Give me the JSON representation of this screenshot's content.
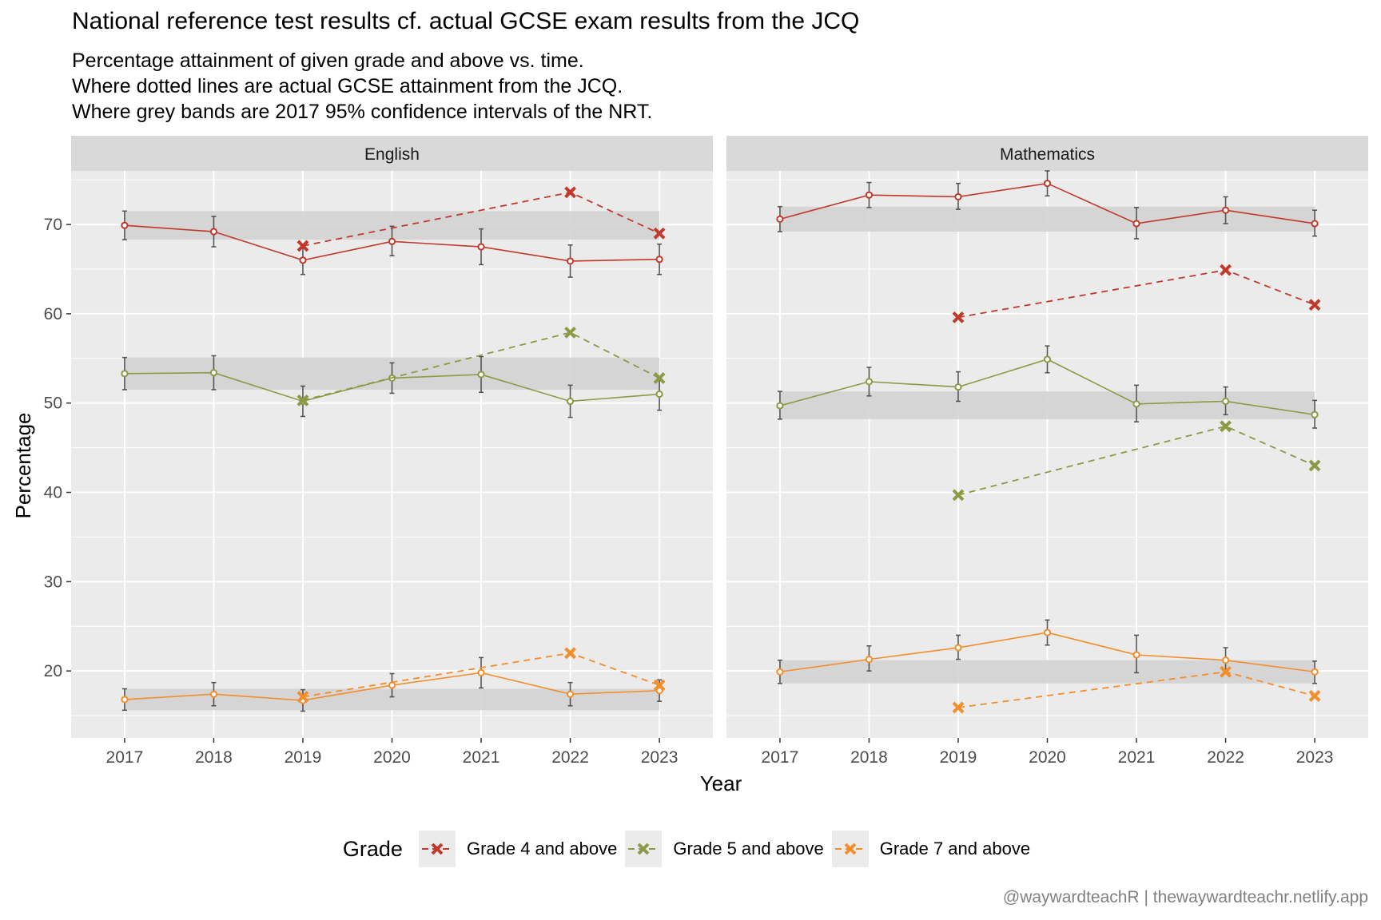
{
  "title": "National reference test results cf. actual GCSE exam results from the JCQ",
  "subtitle_lines": [
    "Percentage attainment of given grade and above vs. time.",
    "Where dotted lines are actual GCSE attainment from the JCQ.",
    "Where grey bands are 2017 95% confidence intervals of the NRT."
  ],
  "caption": "@waywardteachR | thewaywardteachr.netlify.app",
  "colors": {
    "grade4": "#c0392b",
    "grade5": "#8a9a45",
    "grade7": "#f28e2b",
    "panel_bg": "#ebebeb",
    "strip_bg": "#d9d9d9",
    "band": "#d3d3d3"
  },
  "chart_data": {
    "type": "line",
    "xlabel": "Year",
    "ylabel": "Percentage",
    "x": [
      2017,
      2018,
      2019,
      2020,
      2021,
      2022,
      2023
    ],
    "xlim": [
      2016.4,
      2023.6
    ],
    "ylim": [
      12.5,
      76
    ],
    "yticks": [
      20,
      30,
      40,
      50,
      60,
      70
    ],
    "legend": {
      "title": "Grade",
      "position": "bottom",
      "entries": [
        "Grade 4 and above",
        "Grade 5 and above",
        "Grade 7 and above"
      ]
    },
    "panels": [
      {
        "name": "English",
        "nrt": [
          {
            "grade": "Grade 4 and above",
            "values": [
              69.9,
              69.2,
              66.0,
              68.1,
              67.5,
              65.9,
              66.1
            ],
            "lower": [
              68.3,
              67.5,
              64.4,
              66.5,
              65.5,
              64.1,
              64.4
            ],
            "upper": [
              71.5,
              70.9,
              67.6,
              69.8,
              69.5,
              67.7,
              67.8
            ]
          },
          {
            "grade": "Grade 5 and above",
            "values": [
              53.3,
              53.4,
              50.2,
              52.8,
              53.2,
              50.2,
              51.0
            ],
            "lower": [
              51.5,
              51.5,
              48.5,
              51.1,
              51.2,
              48.4,
              49.2
            ],
            "upper": [
              55.1,
              55.3,
              51.9,
              54.5,
              55.2,
              52.0,
              52.8
            ]
          },
          {
            "grade": "Grade 7 and above",
            "values": [
              16.8,
              17.4,
              16.7,
              18.4,
              19.8,
              17.4,
              17.8
            ],
            "lower": [
              15.6,
              16.1,
              15.5,
              17.1,
              18.1,
              16.1,
              16.6
            ],
            "upper": [
              18.0,
              18.7,
              17.9,
              19.7,
              21.5,
              18.7,
              19.0
            ]
          }
        ],
        "jcq": [
          {
            "grade": "Grade 4 and above",
            "x": [
              2019,
              2022,
              2023
            ],
            "values": [
              67.6,
              73.6,
              69.0
            ]
          },
          {
            "grade": "Grade 5 and above",
            "x": [
              2019,
              2022,
              2023
            ],
            "values": [
              50.3,
              57.9,
              52.8
            ]
          },
          {
            "grade": "Grade 7 and above",
            "x": [
              2019,
              2022,
              2023
            ],
            "values": [
              17.1,
              22.0,
              18.4
            ]
          }
        ],
        "bands_2017": [
          {
            "grade": "Grade 4 and above",
            "lower": 68.3,
            "upper": 71.5
          },
          {
            "grade": "Grade 5 and above",
            "lower": 51.5,
            "upper": 55.1
          },
          {
            "grade": "Grade 7 and above",
            "lower": 15.6,
            "upper": 18.0
          }
        ]
      },
      {
        "name": "Mathematics",
        "nrt": [
          {
            "grade": "Grade 4 and above",
            "values": [
              70.6,
              73.3,
              73.1,
              74.6,
              70.1,
              71.6,
              70.1
            ],
            "lower": [
              69.2,
              71.9,
              71.7,
              73.2,
              68.4,
              70.1,
              68.7
            ],
            "upper": [
              72.0,
              74.7,
              74.6,
              76.0,
              71.9,
              73.1,
              71.6
            ]
          },
          {
            "grade": "Grade 5 and above",
            "values": [
              49.7,
              52.4,
              51.8,
              54.9,
              49.9,
              50.2,
              48.7
            ],
            "lower": [
              48.2,
              50.8,
              50.2,
              53.4,
              47.9,
              48.7,
              47.2
            ],
            "upper": [
              51.3,
              54.0,
              53.5,
              56.4,
              52.0,
              51.8,
              50.3
            ]
          },
          {
            "grade": "Grade 7 and above",
            "values": [
              19.9,
              21.3,
              22.6,
              24.3,
              21.8,
              21.2,
              19.9
            ],
            "lower": [
              18.6,
              20.0,
              21.3,
              22.9,
              19.8,
              19.9,
              18.6
            ],
            "upper": [
              21.2,
              22.8,
              24.0,
              25.7,
              24.0,
              22.6,
              21.1
            ]
          }
        ],
        "jcq": [
          {
            "grade": "Grade 4 and above",
            "x": [
              2019,
              2022,
              2023
            ],
            "values": [
              59.6,
              64.9,
              61.0
            ]
          },
          {
            "grade": "Grade 5 and above",
            "x": [
              2019,
              2022,
              2023
            ],
            "values": [
              39.7,
              47.4,
              43.0
            ]
          },
          {
            "grade": "Grade 7 and above",
            "x": [
              2019,
              2022,
              2023
            ],
            "values": [
              15.9,
              19.9,
              17.2
            ]
          }
        ],
        "bands_2017": [
          {
            "grade": "Grade 4 and above",
            "lower": 69.2,
            "upper": 72.0
          },
          {
            "grade": "Grade 5 and above",
            "lower": 48.2,
            "upper": 51.3
          },
          {
            "grade": "Grade 7 and above",
            "lower": 18.6,
            "upper": 21.2
          }
        ]
      }
    ]
  }
}
